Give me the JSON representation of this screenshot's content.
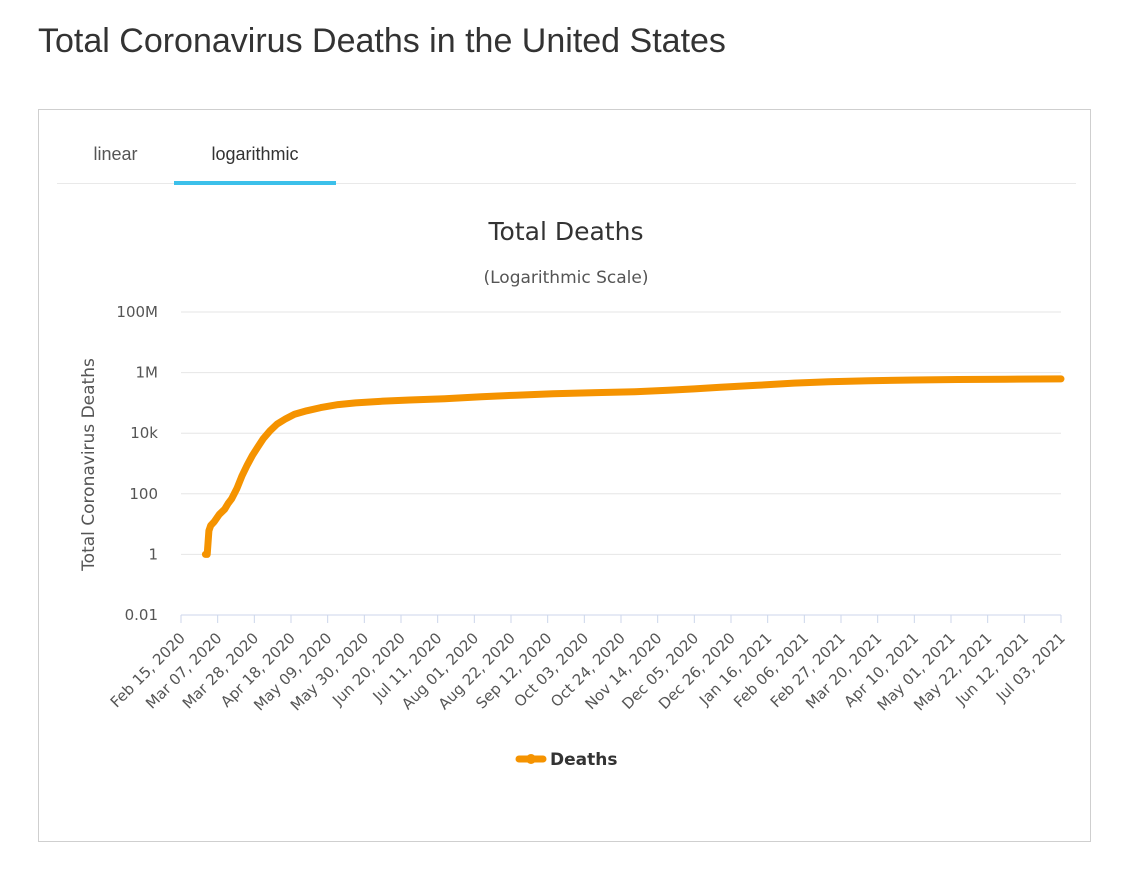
{
  "page": {
    "title": "Total Coronavirus Deaths in the United States"
  },
  "tabs": [
    {
      "label": "linear",
      "active": false
    },
    {
      "label": "logarithmic",
      "active": true
    }
  ],
  "colors": {
    "series": "#f59300",
    "tab_active": "#3cc0ea",
    "grid": "#e6e6e6",
    "axis": "#ccd6eb"
  },
  "chart_data": {
    "type": "line",
    "title": "Total Deaths",
    "subtitle": "(Logarithmic Scale)",
    "ylabel": "Total Coronavirus Deaths",
    "xlabel": "",
    "y_scale": "log",
    "ylim": [
      0.01,
      100000000
    ],
    "y_ticks": [
      {
        "value": 0.01,
        "label": "0.01"
      },
      {
        "value": 1,
        "label": "1"
      },
      {
        "value": 100,
        "label": "100"
      },
      {
        "value": 10000,
        "label": "10k"
      },
      {
        "value": 1000000,
        "label": "1M"
      },
      {
        "value": 100000000,
        "label": "100M"
      }
    ],
    "xlim": [
      "2020-02-15",
      "2021-07-03"
    ],
    "x_ticks": [
      "Feb 15, 2020",
      "Mar 07, 2020",
      "Mar 28, 2020",
      "Apr 18, 2020",
      "May 09, 2020",
      "May 30, 2020",
      "Jun 20, 2020",
      "Jul 11, 2020",
      "Aug 01, 2020",
      "Aug 22, 2020",
      "Sep 12, 2020",
      "Oct 03, 2020",
      "Oct 24, 2020",
      "Nov 14, 2020",
      "Dec 05, 2020",
      "Dec 26, 2020",
      "Jan 16, 2021",
      "Feb 06, 2021",
      "Feb 27, 2021",
      "Mar 20, 2021",
      "Apr 10, 2021",
      "May 01, 2021",
      "May 22, 2021",
      "Jun 12, 2021",
      "Jul 03, 2021"
    ],
    "x_tick_dates": [
      "2020-02-15",
      "2020-03-07",
      "2020-03-28",
      "2020-04-18",
      "2020-05-09",
      "2020-05-30",
      "2020-06-20",
      "2020-07-11",
      "2020-08-01",
      "2020-08-22",
      "2020-09-12",
      "2020-10-03",
      "2020-10-24",
      "2020-11-14",
      "2020-12-05",
      "2020-12-26",
      "2021-01-16",
      "2021-02-06",
      "2021-02-27",
      "2021-03-20",
      "2021-04-10",
      "2021-05-01",
      "2021-05-22",
      "2021-06-12",
      "2021-07-03"
    ],
    "grid": true,
    "legend": {
      "position": "bottom-center"
    },
    "series": [
      {
        "name": "Deaths",
        "points": [
          [
            "2020-02-29",
            1
          ],
          [
            "2020-03-01",
            1
          ],
          [
            "2020-03-02",
            6
          ],
          [
            "2020-03-03",
            9
          ],
          [
            "2020-03-05",
            12
          ],
          [
            "2020-03-08",
            21
          ],
          [
            "2020-03-11",
            31
          ],
          [
            "2020-03-13",
            48
          ],
          [
            "2020-03-15",
            68
          ],
          [
            "2020-03-18",
            150
          ],
          [
            "2020-03-21",
            400
          ],
          [
            "2020-03-24",
            900
          ],
          [
            "2020-03-27",
            1900
          ],
          [
            "2020-03-30",
            3500
          ],
          [
            "2020-04-02",
            6500
          ],
          [
            "2020-04-06",
            12000
          ],
          [
            "2020-04-10",
            20000
          ],
          [
            "2020-04-15",
            30000
          ],
          [
            "2020-04-20",
            42000
          ],
          [
            "2020-04-27",
            55000
          ],
          [
            "2020-05-05",
            70000
          ],
          [
            "2020-05-15",
            88000
          ],
          [
            "2020-05-25",
            100000
          ],
          [
            "2020-06-10",
            115000
          ],
          [
            "2020-06-25",
            125000
          ],
          [
            "2020-07-15",
            138000
          ],
          [
            "2020-08-05",
            160000
          ],
          [
            "2020-08-25",
            180000
          ],
          [
            "2020-09-15",
            200000
          ],
          [
            "2020-10-10",
            218000
          ],
          [
            "2020-11-01",
            235000
          ],
          [
            "2020-11-20",
            260000
          ],
          [
            "2020-12-05",
            290000
          ],
          [
            "2020-12-20",
            330000
          ],
          [
            "2021-01-10",
            380000
          ],
          [
            "2021-01-31",
            450000
          ],
          [
            "2021-02-20",
            500000
          ],
          [
            "2021-03-15",
            540000
          ],
          [
            "2021-04-10",
            570000
          ],
          [
            "2021-05-05",
            590000
          ],
          [
            "2021-06-01",
            605000
          ],
          [
            "2021-07-03",
            618000
          ]
        ]
      }
    ]
  }
}
